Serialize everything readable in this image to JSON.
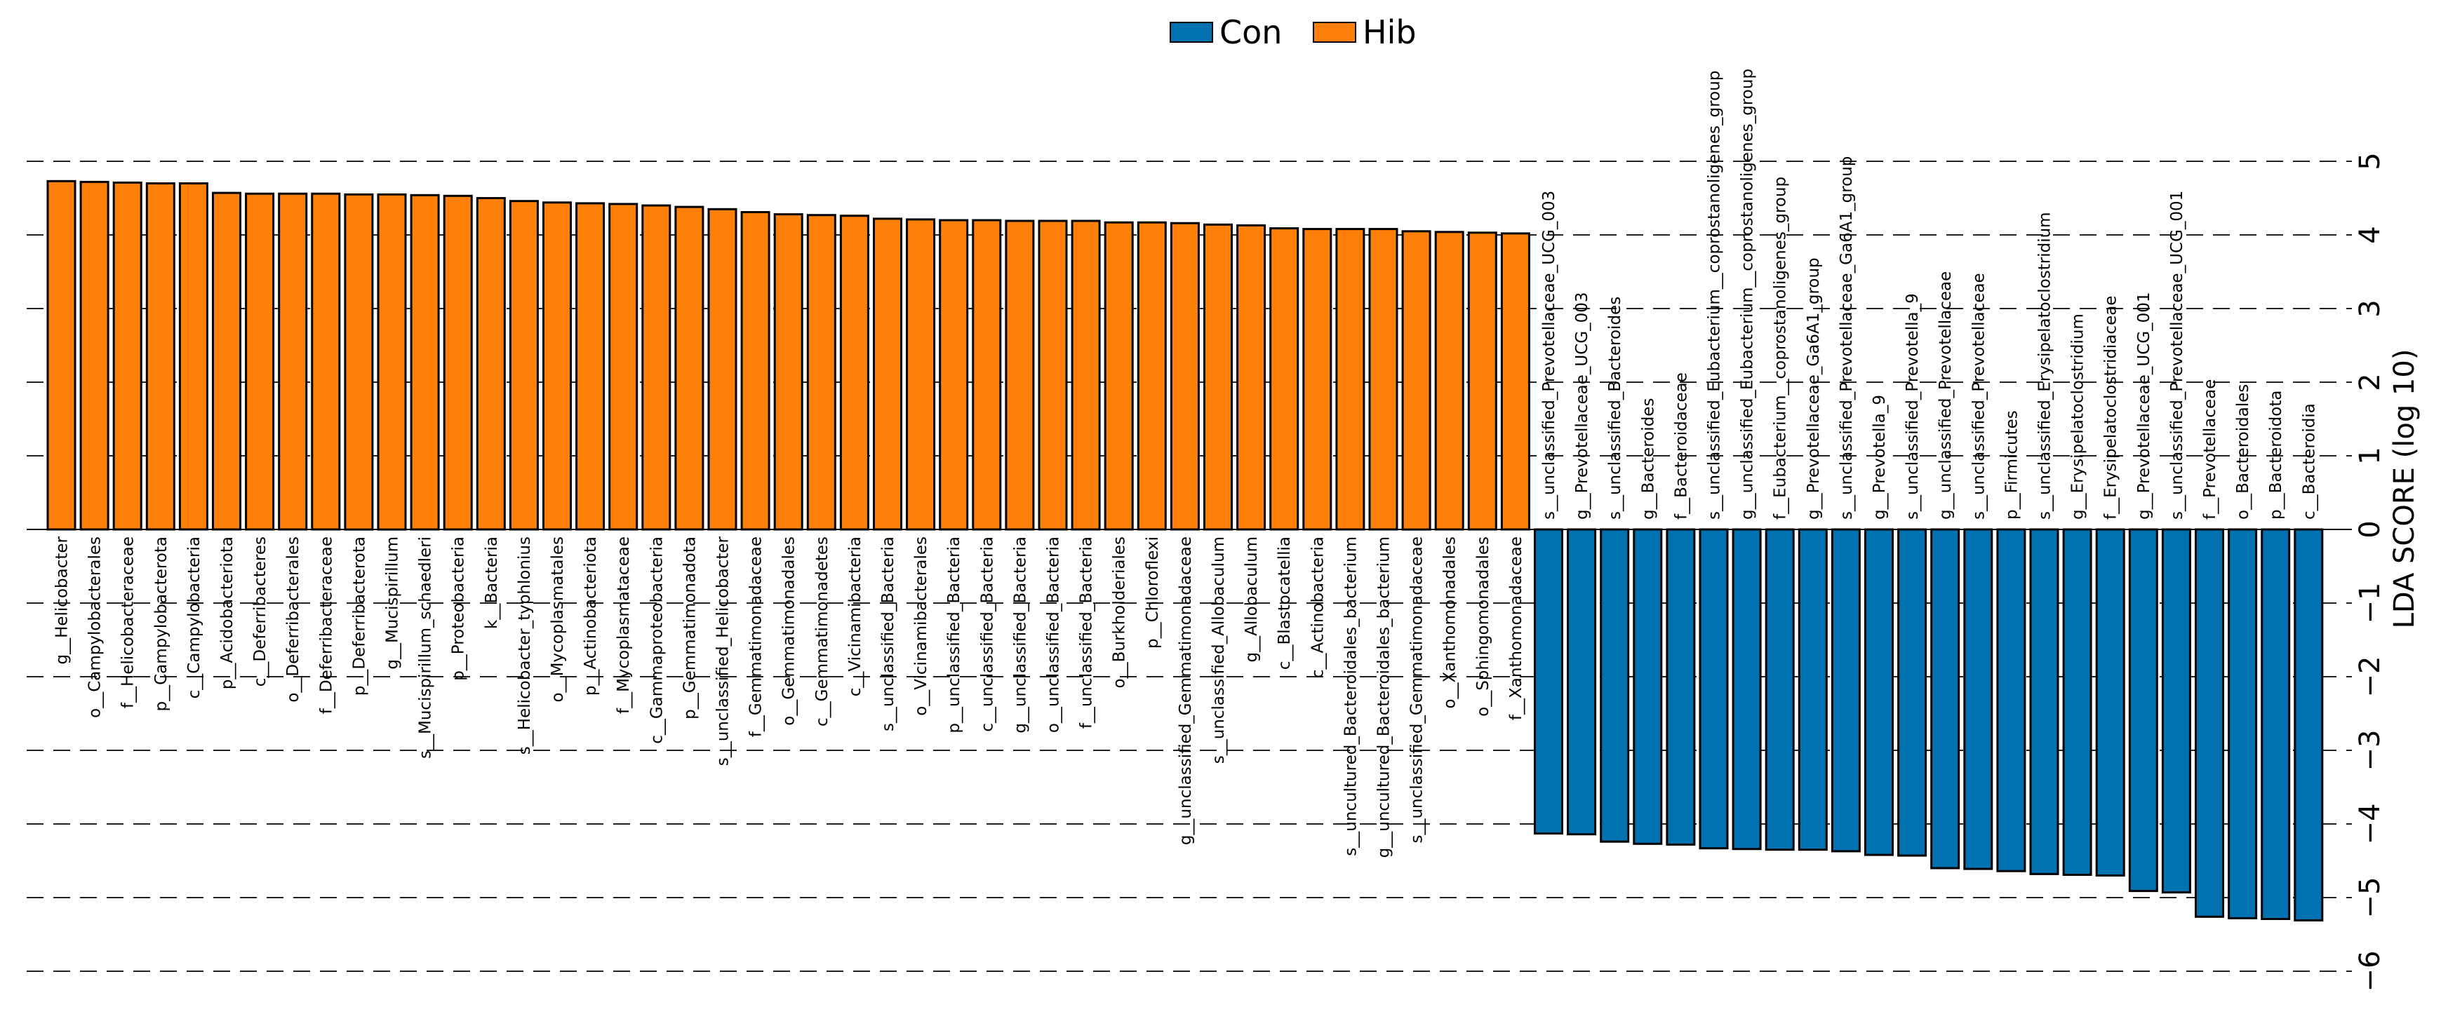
{
  "chart_data": {
    "type": "bar",
    "orientation": "vertical",
    "title": "",
    "xlabel": "",
    "ylabel": "LDA SCORE (log 10)",
    "ylim": [
      -6,
      5
    ],
    "yticks": [
      5,
      4,
      3,
      2,
      1,
      0,
      -1,
      -2,
      -3,
      -4,
      -5,
      -6
    ],
    "ytick_labels": [
      "5",
      "4",
      "3",
      "2",
      "1",
      "0",
      "−1",
      "−2",
      "−3",
      "−4",
      "−5",
      "−6"
    ],
    "grid": "horizontal dashed",
    "legend_position": "top-center",
    "legend": [
      {
        "name": "Con",
        "color": "#0072B2"
      },
      {
        "name": "Hib",
        "color": "#FF8008"
      }
    ],
    "bars": [
      {
        "label": "g__Helicobacter",
        "value": 4.73,
        "group": "Hib"
      },
      {
        "label": "o__Campylobacterales",
        "value": 4.72,
        "group": "Hib"
      },
      {
        "label": "f__Helicobacteraceae",
        "value": 4.71,
        "group": "Hib"
      },
      {
        "label": "p__Campylobacterota",
        "value": 4.7,
        "group": "Hib"
      },
      {
        "label": "c__Campylobacteria",
        "value": 4.7,
        "group": "Hib"
      },
      {
        "label": "p__Acidobacteriota",
        "value": 4.57,
        "group": "Hib"
      },
      {
        "label": "c__Deferribacteres",
        "value": 4.56,
        "group": "Hib"
      },
      {
        "label": "o__Deferribacterales",
        "value": 4.56,
        "group": "Hib"
      },
      {
        "label": "f__Deferribacteraceae",
        "value": 4.56,
        "group": "Hib"
      },
      {
        "label": "p__Deferribacterota",
        "value": 4.55,
        "group": "Hib"
      },
      {
        "label": "g__Mucispirillum",
        "value": 4.55,
        "group": "Hib"
      },
      {
        "label": "s__Mucispirillum_schaedleri",
        "value": 4.54,
        "group": "Hib"
      },
      {
        "label": "p__Proteobacteria",
        "value": 4.53,
        "group": "Hib"
      },
      {
        "label": "k__Bacteria",
        "value": 4.5,
        "group": "Hib"
      },
      {
        "label": "s__Helicobacter_typhlonius",
        "value": 4.46,
        "group": "Hib"
      },
      {
        "label": "o__Mycoplasmatales",
        "value": 4.44,
        "group": "Hib"
      },
      {
        "label": "p__Actinobacteriota",
        "value": 4.43,
        "group": "Hib"
      },
      {
        "label": "f__Mycoplasmataceae",
        "value": 4.42,
        "group": "Hib"
      },
      {
        "label": "c__Gammaproteobacteria",
        "value": 4.4,
        "group": "Hib"
      },
      {
        "label": "p__Gemmatimonadota",
        "value": 4.38,
        "group": "Hib"
      },
      {
        "label": "s__unclassified_Helicobacter",
        "value": 4.35,
        "group": "Hib"
      },
      {
        "label": "f__Gemmatimonadaceae",
        "value": 4.31,
        "group": "Hib"
      },
      {
        "label": "o__Gemmatimonadales",
        "value": 4.28,
        "group": "Hib"
      },
      {
        "label": "c__Gemmatimonadetes",
        "value": 4.27,
        "group": "Hib"
      },
      {
        "label": "c__Vicinamibacteria",
        "value": 4.26,
        "group": "Hib"
      },
      {
        "label": "s__unclassified_Bacteria",
        "value": 4.22,
        "group": "Hib"
      },
      {
        "label": "o__Vicinamibacterales",
        "value": 4.21,
        "group": "Hib"
      },
      {
        "label": "p__unclassified_Bacteria",
        "value": 4.2,
        "group": "Hib"
      },
      {
        "label": "c__unclassified_Bacteria",
        "value": 4.2,
        "group": "Hib"
      },
      {
        "label": "g__unclassified_Bacteria",
        "value": 4.19,
        "group": "Hib"
      },
      {
        "label": "o__unclassified_Bacteria",
        "value": 4.19,
        "group": "Hib"
      },
      {
        "label": "f__unclassified_Bacteria",
        "value": 4.19,
        "group": "Hib"
      },
      {
        "label": "o__Burkholderiales",
        "value": 4.17,
        "group": "Hib"
      },
      {
        "label": "p__Chloroflexi",
        "value": 4.17,
        "group": "Hib"
      },
      {
        "label": "g__unclassified_Gemmatimonadaceae",
        "value": 4.16,
        "group": "Hib"
      },
      {
        "label": "s__unclassified_Allobaculum",
        "value": 4.14,
        "group": "Hib"
      },
      {
        "label": "g__Allobaculum",
        "value": 4.13,
        "group": "Hib"
      },
      {
        "label": "c__Blastocatellia",
        "value": 4.09,
        "group": "Hib"
      },
      {
        "label": "c__Actinobacteria",
        "value": 4.08,
        "group": "Hib"
      },
      {
        "label": "s__uncultured_Bacteroidales_bacterium",
        "value": 4.08,
        "group": "Hib"
      },
      {
        "label": "g__uncultured_Bacteroidales_bacterium",
        "value": 4.08,
        "group": "Hib"
      },
      {
        "label": "s__unclassified_Gemmatimonadaceae",
        "value": 4.05,
        "group": "Hib"
      },
      {
        "label": "o__Xanthomonadales",
        "value": 4.04,
        "group": "Hib"
      },
      {
        "label": "o__Sphingomonadales",
        "value": 4.03,
        "group": "Hib"
      },
      {
        "label": "f__Xanthomonadaceae",
        "value": 4.02,
        "group": "Hib"
      },
      {
        "label": "s__unclassified_Prevotellaceae_UCG_003",
        "value": -4.13,
        "group": "Con"
      },
      {
        "label": "g__Prevotellaceae_UCG_003",
        "value": -4.14,
        "group": "Con"
      },
      {
        "label": "s__unclassified_Bacteroides",
        "value": -4.24,
        "group": "Con"
      },
      {
        "label": "g__Bacteroides",
        "value": -4.27,
        "group": "Con"
      },
      {
        "label": "f__Bacteroidaceae",
        "value": -4.28,
        "group": "Con"
      },
      {
        "label": "s__unclassified_Eubacterium__coprostanoligenes_group",
        "value": -4.33,
        "group": "Con"
      },
      {
        "label": "g__unclassified_Eubacterium__coprostanoligenes_group",
        "value": -4.34,
        "group": "Con"
      },
      {
        "label": "f__Eubacterium__coprostanoligenes_group",
        "value": -4.35,
        "group": "Con"
      },
      {
        "label": "g__Prevotellaceae_Ga6A1_group",
        "value": -4.35,
        "group": "Con"
      },
      {
        "label": "s__unclassified_Prevotellaceae_Ga6A1_group",
        "value": -4.37,
        "group": "Con"
      },
      {
        "label": "g__Prevotella_9",
        "value": -4.42,
        "group": "Con"
      },
      {
        "label": "s__unclassified_Prevotella_9",
        "value": -4.43,
        "group": "Con"
      },
      {
        "label": "g__unclassified_Prevotellaceae",
        "value": -4.6,
        "group": "Con"
      },
      {
        "label": "s__unclassified_Prevotellaceae",
        "value": -4.61,
        "group": "Con"
      },
      {
        "label": "p__Firmicutes",
        "value": -4.64,
        "group": "Con"
      },
      {
        "label": "s__unclassified_Erysipelatoclostridium",
        "value": -4.68,
        "group": "Con"
      },
      {
        "label": "g__Erysipelatoclostridium",
        "value": -4.69,
        "group": "Con"
      },
      {
        "label": "f__Erysipelatoclostridiaceae",
        "value": -4.7,
        "group": "Con"
      },
      {
        "label": "g__Prevotellaceae_UCG_001",
        "value": -4.91,
        "group": "Con"
      },
      {
        "label": "s__unclassified_Prevotellaceae_UCG_001",
        "value": -4.93,
        "group": "Con"
      },
      {
        "label": "f__Prevotellaceae",
        "value": -5.26,
        "group": "Con"
      },
      {
        "label": "o__Bacteroidales",
        "value": -5.28,
        "group": "Con"
      },
      {
        "label": "p__Bacteroidota",
        "value": -5.29,
        "group": "Con"
      },
      {
        "label": "c__Bacteroidia",
        "value": -5.31,
        "group": "Con"
      }
    ]
  }
}
